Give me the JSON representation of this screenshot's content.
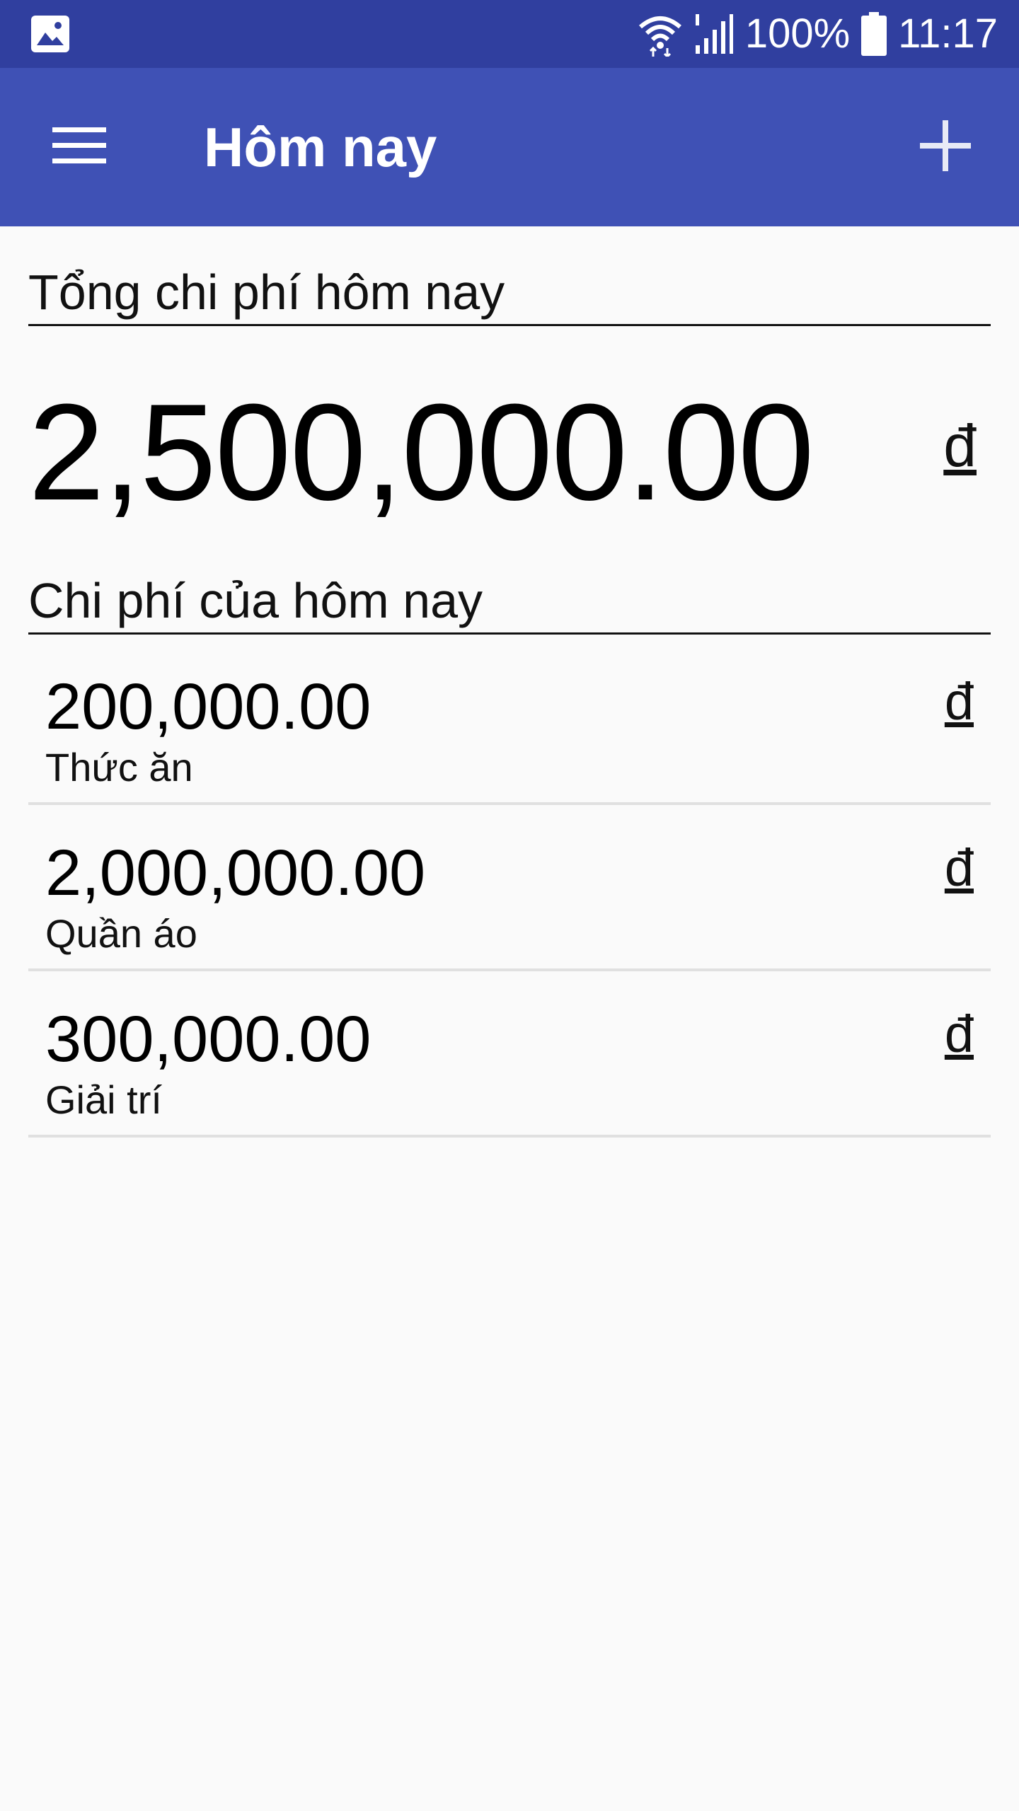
{
  "status_bar": {
    "battery_percent": "100%",
    "time": "11:17"
  },
  "app_bar": {
    "title": "Hôm nay",
    "menu_icon": "menu-icon",
    "add_icon": "add-icon"
  },
  "total": {
    "header": "Tổng chi phí hôm nay",
    "amount": "2,500,000.00",
    "currency": "đ"
  },
  "expenses": {
    "header": "Chi phí của hôm nay",
    "items": [
      {
        "amount": "200,000.00",
        "category": "Thức ăn",
        "currency": "đ"
      },
      {
        "amount": "2,000,000.00",
        "category": "Quần áo",
        "currency": "đ"
      },
      {
        "amount": "300,000.00",
        "category": "Giải trí",
        "currency": "đ"
      }
    ]
  },
  "colors": {
    "status_bar": "#303F9F",
    "app_bar": "#3F51B5",
    "background": "#FAFAFA",
    "divider": "#E0E0E0"
  }
}
